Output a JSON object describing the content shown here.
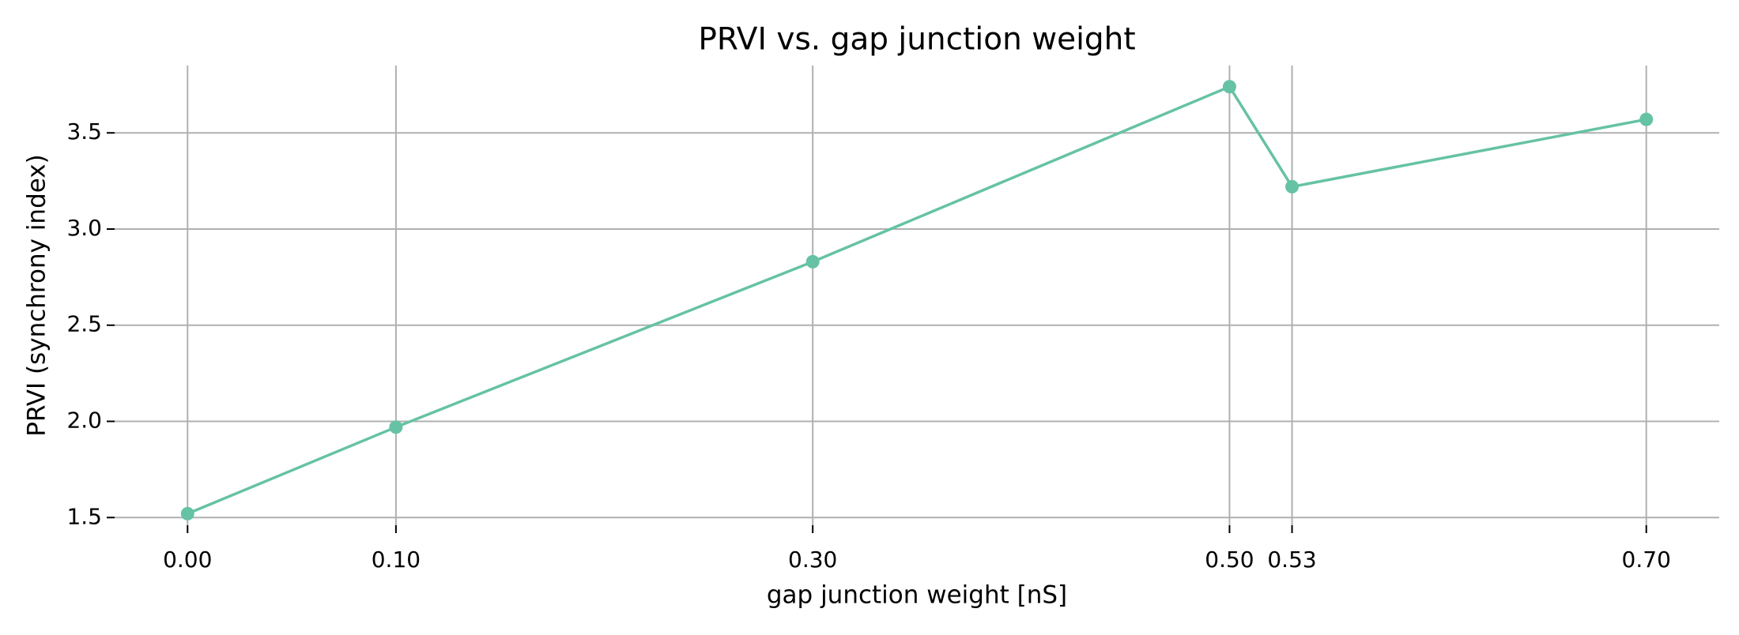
{
  "chart_data": {
    "type": "line",
    "title": "PRVI vs. gap junction weight",
    "x_label": "gap junction weight [nS]",
    "y_label": "PRVI (synchrony index)",
    "x": [
      0,
      0.1,
      0.3,
      0.5,
      0.53,
      0.7
    ],
    "series": [
      {
        "name": "PRVI",
        "color": "#66c2a5",
        "values": [
          1.52,
          1.97,
          2.83,
          3.74,
          3.22,
          3.57
        ]
      }
    ],
    "xlim": [
      -0.035,
      0.735
    ],
    "ylim": [
      1.46,
      3.85
    ],
    "xticks": [
      {
        "value": 0,
        "label": "0.00"
      },
      {
        "value": 0.1,
        "label": "0.10"
      },
      {
        "value": 0.3,
        "label": "0.30"
      },
      {
        "value": 0.5,
        "label": "0.50"
      },
      {
        "value": 0.53,
        "label": "0.53"
      },
      {
        "value": 0.7,
        "label": "0.70"
      }
    ],
    "yticks": [
      1.5,
      {
        "value": 2,
        "label": "2.0"
      },
      2.5,
      {
        "value": 3,
        "label": "3.0"
      },
      3.5
    ],
    "grid": true
  }
}
